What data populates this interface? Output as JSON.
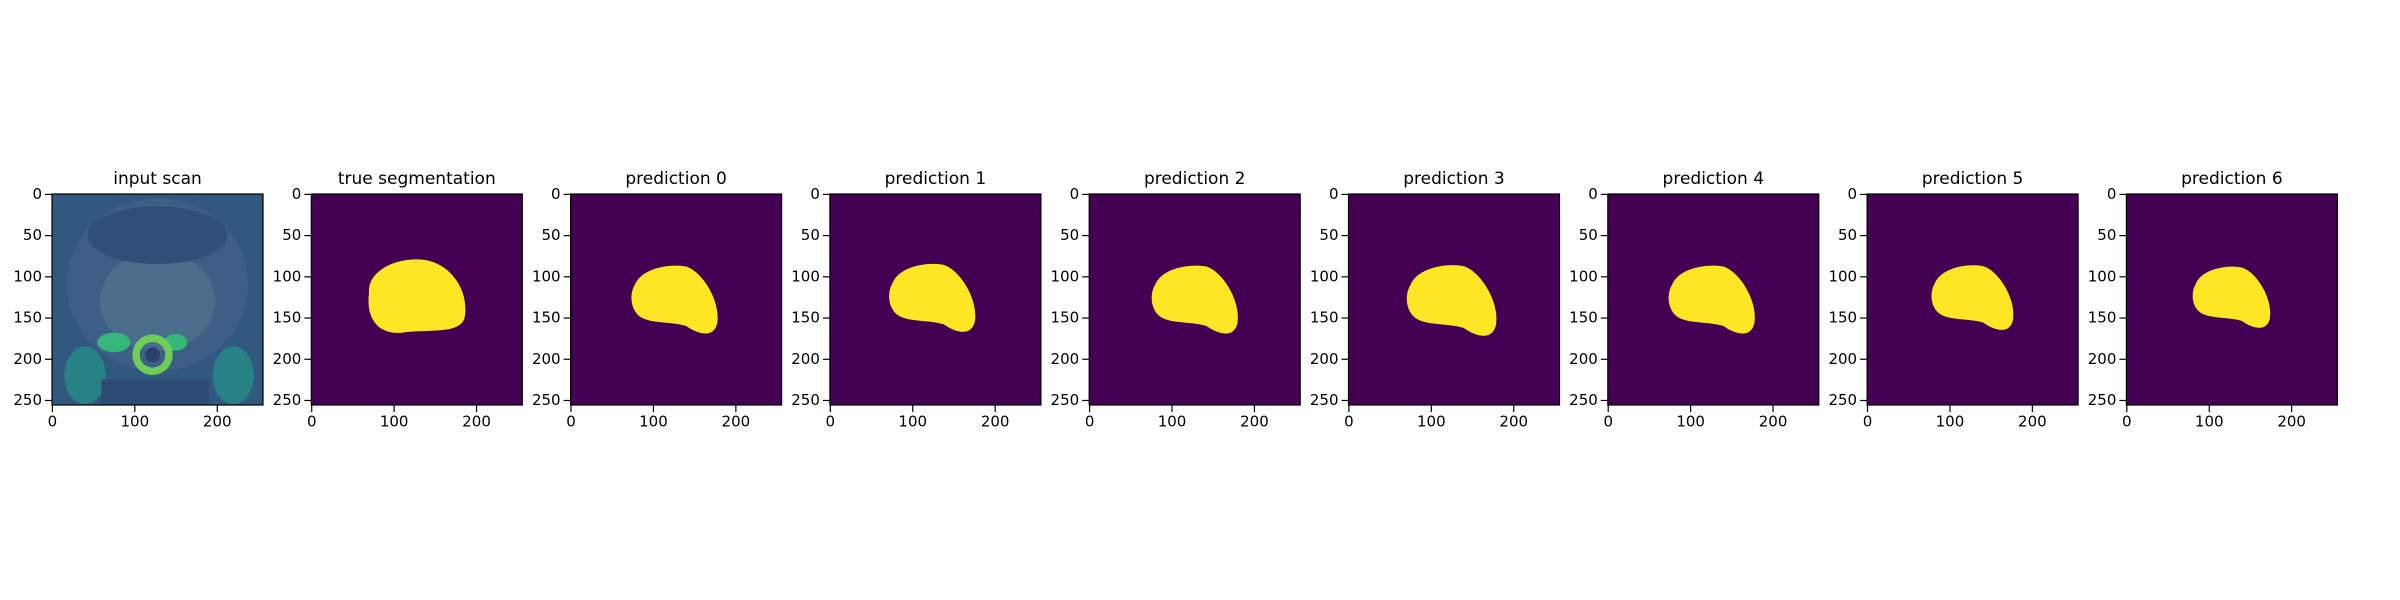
{
  "chart_data": [
    {
      "type": "image",
      "title": "input scan",
      "xlim": [
        -0.5,
        255.5
      ],
      "ylim": [
        255.5,
        -0.5
      ],
      "xticks": [
        0,
        100,
        200
      ],
      "yticks": [
        0,
        50,
        100,
        150,
        200,
        250
      ]
    },
    {
      "type": "image",
      "title": "true segmentation",
      "xlim": [
        -0.5,
        255.5
      ],
      "ylim": [
        255.5,
        -0.5
      ],
      "xticks": [
        0,
        100,
        200
      ],
      "yticks": [
        0,
        50,
        100,
        150,
        200,
        250
      ]
    },
    {
      "type": "image",
      "title": "prediction 0",
      "xlim": [
        -0.5,
        255.5
      ],
      "ylim": [
        255.5,
        -0.5
      ],
      "xticks": [
        0,
        100,
        200
      ],
      "yticks": [
        0,
        50,
        100,
        150,
        200,
        250
      ]
    },
    {
      "type": "image",
      "title": "prediction 1",
      "xlim": [
        -0.5,
        255.5
      ],
      "ylim": [
        255.5,
        -0.5
      ],
      "xticks": [
        0,
        100,
        200
      ],
      "yticks": [
        0,
        50,
        100,
        150,
        200,
        250
      ]
    },
    {
      "type": "image",
      "title": "prediction 2",
      "xlim": [
        -0.5,
        255.5
      ],
      "ylim": [
        255.5,
        -0.5
      ],
      "xticks": [
        0,
        100,
        200
      ],
      "yticks": [
        0,
        50,
        100,
        150,
        200,
        250
      ]
    },
    {
      "type": "image",
      "title": "prediction 3",
      "xlim": [
        -0.5,
        255.5
      ],
      "ylim": [
        255.5,
        -0.5
      ],
      "xticks": [
        0,
        100,
        200
      ],
      "yticks": [
        0,
        50,
        100,
        150,
        200,
        250
      ]
    },
    {
      "type": "image",
      "title": "prediction 4",
      "xlim": [
        -0.5,
        255.5
      ],
      "ylim": [
        255.5,
        -0.5
      ],
      "xticks": [
        0,
        100,
        200
      ],
      "yticks": [
        0,
        50,
        100,
        150,
        200,
        250
      ]
    },
    {
      "type": "image",
      "title": "prediction 5",
      "xlim": [
        -0.5,
        255.5
      ],
      "ylim": [
        255.5,
        -0.5
      ],
      "xticks": [
        0,
        100,
        200
      ],
      "yticks": [
        0,
        50,
        100,
        150,
        200,
        250
      ]
    },
    {
      "type": "image",
      "title": "prediction 6",
      "xlim": [
        -0.5,
        255.5
      ],
      "ylim": [
        255.5,
        -0.5
      ],
      "xticks": [
        0,
        100,
        200
      ],
      "yticks": [
        0,
        50,
        100,
        150,
        200,
        250
      ]
    }
  ]
}
